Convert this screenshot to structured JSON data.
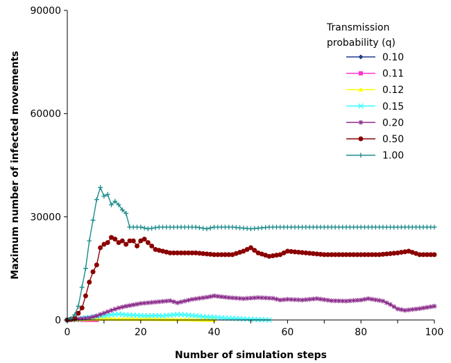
{
  "chart_data": {
    "type": "line",
    "xlabel": "Number of simulation steps",
    "ylabel": "Maximum number of infected movements",
    "xlim": [
      0,
      100
    ],
    "ylim": [
      0,
      90000
    ],
    "xticks": [
      "0",
      "20",
      "40",
      "60",
      "80",
      "100"
    ],
    "yticks": [
      "0",
      "30000",
      "60000",
      "90000"
    ],
    "grid": false,
    "legend_placement": "top-right",
    "legend_title": [
      "Transmission",
      "probability (q)"
    ],
    "series": [
      {
        "name": "0.10",
        "color": "#1f3d8a",
        "marker": "diamond",
        "x": [
          0,
          1,
          2,
          3,
          4,
          5
        ],
        "y": [
          0,
          20,
          10,
          0,
          0,
          0
        ]
      },
      {
        "name": "0.11",
        "color": "#ff33cc",
        "marker": "square",
        "x": [
          0,
          1,
          2,
          3,
          4,
          5,
          6,
          7,
          8
        ],
        "y": [
          0,
          50,
          100,
          80,
          40,
          20,
          0,
          0,
          0
        ]
      },
      {
        "name": "0.12",
        "color": "#ffff00",
        "marker": "triangle",
        "x": [
          0,
          2,
          4,
          6,
          8,
          10,
          12,
          14,
          16,
          18,
          20,
          22,
          24,
          26,
          28,
          30,
          32,
          34,
          36,
          38,
          40
        ],
        "y": [
          0,
          50,
          150,
          250,
          300,
          350,
          350,
          300,
          350,
          300,
          250,
          300,
          250,
          200,
          200,
          150,
          150,
          100,
          50,
          20,
          0
        ]
      },
      {
        "name": "0.15",
        "color": "#33ffff",
        "marker": "x",
        "x": [
          0,
          2,
          4,
          6,
          8,
          10,
          12,
          14,
          16,
          18,
          20,
          22,
          24,
          26,
          28,
          30,
          32,
          34,
          36,
          38,
          40,
          42,
          44,
          46,
          48,
          50,
          52,
          54,
          55
        ],
        "y": [
          0,
          200,
          500,
          800,
          1000,
          1200,
          1500,
          1700,
          1500,
          1400,
          1300,
          1200,
          1300,
          1200,
          1400,
          1600,
          1500,
          1300,
          1100,
          900,
          800,
          600,
          500,
          400,
          300,
          200,
          100,
          50,
          0
        ]
      },
      {
        "name": "0.20",
        "color": "#8b2c8b",
        "marker": "star",
        "x": [
          0,
          3,
          6,
          8,
          10,
          12,
          14,
          16,
          18,
          20,
          24,
          28,
          30,
          34,
          38,
          40,
          44,
          48,
          52,
          56,
          58,
          60,
          64,
          68,
          72,
          76,
          80,
          82,
          86,
          88,
          90,
          92,
          96,
          100
        ],
        "y": [
          0,
          300,
          600,
          1200,
          2000,
          2800,
          3500,
          4000,
          4400,
          4800,
          5200,
          5600,
          5000,
          6000,
          6600,
          7000,
          6500,
          6200,
          6500,
          6300,
          5800,
          6000,
          5800,
          6200,
          5600,
          5500,
          5800,
          6200,
          5500,
          4500,
          3200,
          2800,
          3300,
          4000
        ]
      },
      {
        "name": "0.50",
        "color": "#8b0000",
        "marker": "circle",
        "x": [
          0,
          2,
          4,
          5,
          6,
          7,
          8,
          9,
          10,
          11,
          12,
          13,
          14,
          15,
          16,
          17,
          18,
          19,
          20,
          21,
          22,
          24,
          26,
          28,
          30,
          35,
          40,
          45,
          48,
          50,
          52,
          55,
          58,
          60,
          65,
          70,
          75,
          80,
          85,
          90,
          93,
          96,
          100
        ],
        "y": [
          0,
          400,
          3500,
          7000,
          11000,
          14000,
          16000,
          21000,
          22000,
          22500,
          24000,
          23500,
          22500,
          23000,
          22000,
          23000,
          23000,
          21500,
          23000,
          23500,
          22500,
          20500,
          20000,
          19500,
          19500,
          19500,
          19000,
          19000,
          20000,
          21000,
          19500,
          18500,
          19000,
          20000,
          19500,
          19000,
          19000,
          19000,
          19000,
          19500,
          20000,
          19000,
          19000
        ]
      },
      {
        "name": "1.00",
        "color": "#1a8a8a",
        "marker": "plus",
        "x": [
          0,
          1,
          2,
          3,
          4,
          5,
          6,
          7,
          8,
          9,
          10,
          11,
          12,
          13,
          14,
          15,
          16,
          17,
          18,
          20,
          22,
          25,
          30,
          35,
          38,
          40,
          45,
          50,
          55,
          60,
          65,
          70,
          75,
          80,
          85,
          90,
          95,
          100
        ],
        "y": [
          0,
          400,
          1500,
          4000,
          9500,
          15000,
          23000,
          29000,
          35000,
          38500,
          36000,
          36500,
          33500,
          34500,
          33500,
          32000,
          31000,
          27000,
          27000,
          27000,
          26500,
          27000,
          27000,
          27000,
          26500,
          27000,
          27000,
          26500,
          27000,
          27000,
          27000,
          27000,
          27000,
          27000,
          27000,
          27000,
          27000,
          27000
        ]
      }
    ]
  }
}
